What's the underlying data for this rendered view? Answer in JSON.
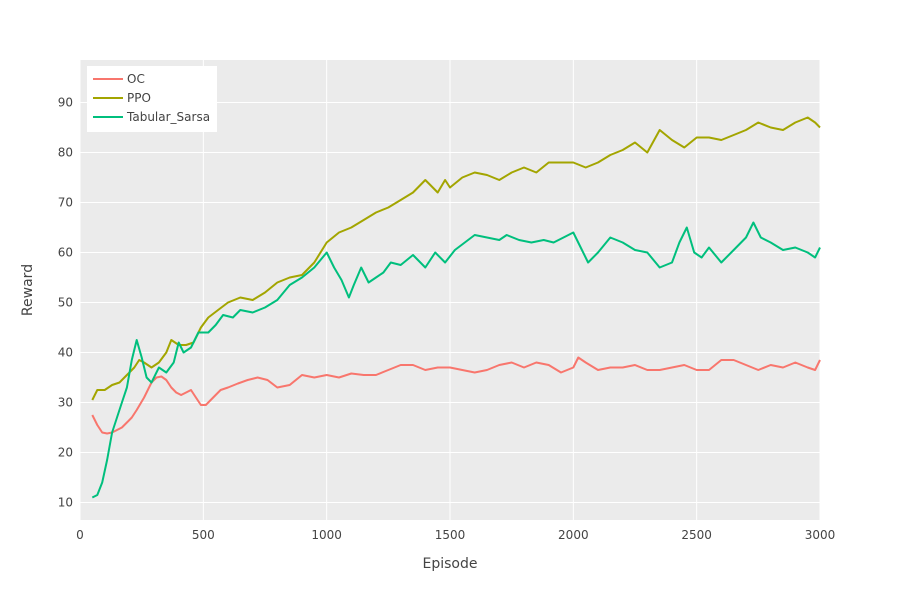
{
  "chart_data": {
    "type": "line",
    "title": "",
    "xlabel": "Episode",
    "ylabel": "Reward",
    "xlim": [
      0,
      3000
    ],
    "ylim": [
      6.5,
      98.5
    ],
    "xticks": [
      0,
      500,
      1000,
      1500,
      2000,
      2500,
      3000
    ],
    "yticks": [
      10,
      20,
      30,
      40,
      50,
      60,
      70,
      80,
      90
    ],
    "grid": true,
    "legend_position": "top-left",
    "colors": {
      "plot_background": "#ebebeb",
      "grid": "#ffffff"
    },
    "series": [
      {
        "name": "OC",
        "color": "#f8766d",
        "points": [
          [
            50,
            27.5
          ],
          [
            70,
            25.5
          ],
          [
            90,
            24
          ],
          [
            110,
            23.8
          ],
          [
            130,
            24
          ],
          [
            150,
            24.5
          ],
          [
            170,
            25
          ],
          [
            190,
            26
          ],
          [
            210,
            27
          ],
          [
            230,
            28.5
          ],
          [
            260,
            31
          ],
          [
            290,
            34
          ],
          [
            310,
            35
          ],
          [
            330,
            35.2
          ],
          [
            350,
            34.5
          ],
          [
            370,
            33
          ],
          [
            390,
            32
          ],
          [
            410,
            31.5
          ],
          [
            430,
            32
          ],
          [
            450,
            32.5
          ],
          [
            470,
            31
          ],
          [
            490,
            29.5
          ],
          [
            510,
            29.5
          ],
          [
            540,
            31
          ],
          [
            570,
            32.5
          ],
          [
            600,
            33
          ],
          [
            640,
            33.8
          ],
          [
            680,
            34.5
          ],
          [
            720,
            35
          ],
          [
            760,
            34.5
          ],
          [
            800,
            33
          ],
          [
            850,
            33.5
          ],
          [
            900,
            35.5
          ],
          [
            950,
            35
          ],
          [
            1000,
            35.5
          ],
          [
            1050,
            35
          ],
          [
            1100,
            35.8
          ],
          [
            1150,
            35.5
          ],
          [
            1200,
            35.5
          ],
          [
            1250,
            36.5
          ],
          [
            1300,
            37.5
          ],
          [
            1350,
            37.5
          ],
          [
            1400,
            36.5
          ],
          [
            1450,
            37
          ],
          [
            1500,
            37
          ],
          [
            1550,
            36.5
          ],
          [
            1600,
            36
          ],
          [
            1650,
            36.5
          ],
          [
            1700,
            37.5
          ],
          [
            1750,
            38
          ],
          [
            1800,
            37
          ],
          [
            1850,
            38
          ],
          [
            1900,
            37.5
          ],
          [
            1950,
            36
          ],
          [
            2000,
            37
          ],
          [
            2020,
            39
          ],
          [
            2050,
            38
          ],
          [
            2100,
            36.5
          ],
          [
            2150,
            37
          ],
          [
            2200,
            37
          ],
          [
            2250,
            37.5
          ],
          [
            2300,
            36.5
          ],
          [
            2350,
            36.5
          ],
          [
            2400,
            37
          ],
          [
            2450,
            37.5
          ],
          [
            2500,
            36.5
          ],
          [
            2550,
            36.5
          ],
          [
            2600,
            38.5
          ],
          [
            2650,
            38.5
          ],
          [
            2700,
            37.5
          ],
          [
            2750,
            36.5
          ],
          [
            2800,
            37.5
          ],
          [
            2850,
            37
          ],
          [
            2900,
            38
          ],
          [
            2950,
            37
          ],
          [
            2980,
            36.5
          ],
          [
            3000,
            38.5
          ]
        ]
      },
      {
        "name": "PPO",
        "color": "#a3a500",
        "points": [
          [
            50,
            30.5
          ],
          [
            70,
            32.5
          ],
          [
            100,
            32.5
          ],
          [
            130,
            33.5
          ],
          [
            160,
            34
          ],
          [
            190,
            35.5
          ],
          [
            220,
            37
          ],
          [
            240,
            38.5
          ],
          [
            260,
            38
          ],
          [
            290,
            37
          ],
          [
            320,
            38
          ],
          [
            350,
            40
          ],
          [
            370,
            42.5
          ],
          [
            400,
            41.5
          ],
          [
            430,
            41.5
          ],
          [
            460,
            42
          ],
          [
            490,
            45
          ],
          [
            520,
            47
          ],
          [
            560,
            48.5
          ],
          [
            600,
            50
          ],
          [
            650,
            51
          ],
          [
            700,
            50.5
          ],
          [
            750,
            52
          ],
          [
            800,
            54
          ],
          [
            850,
            55
          ],
          [
            900,
            55.5
          ],
          [
            950,
            58
          ],
          [
            1000,
            62
          ],
          [
            1050,
            64
          ],
          [
            1100,
            65
          ],
          [
            1150,
            66.5
          ],
          [
            1200,
            68
          ],
          [
            1250,
            69
          ],
          [
            1300,
            70.5
          ],
          [
            1350,
            72
          ],
          [
            1400,
            74.5
          ],
          [
            1420,
            73.5
          ],
          [
            1450,
            72
          ],
          [
            1480,
            74.5
          ],
          [
            1500,
            73
          ],
          [
            1550,
            75
          ],
          [
            1600,
            76
          ],
          [
            1650,
            75.5
          ],
          [
            1700,
            74.5
          ],
          [
            1750,
            76
          ],
          [
            1800,
            77
          ],
          [
            1850,
            76
          ],
          [
            1900,
            78
          ],
          [
            1950,
            78
          ],
          [
            2000,
            78
          ],
          [
            2050,
            77
          ],
          [
            2100,
            78
          ],
          [
            2150,
            79.5
          ],
          [
            2200,
            80.5
          ],
          [
            2250,
            82
          ],
          [
            2300,
            80
          ],
          [
            2350,
            84.5
          ],
          [
            2400,
            82.5
          ],
          [
            2450,
            81
          ],
          [
            2500,
            83
          ],
          [
            2550,
            83
          ],
          [
            2600,
            82.5
          ],
          [
            2650,
            83.5
          ],
          [
            2700,
            84.5
          ],
          [
            2750,
            86
          ],
          [
            2800,
            85
          ],
          [
            2850,
            84.5
          ],
          [
            2900,
            86
          ],
          [
            2950,
            87
          ],
          [
            2980,
            86
          ],
          [
            3000,
            85
          ]
        ]
      },
      {
        "name": "Tabular_Sarsa",
        "color": "#00bf7d",
        "points": [
          [
            50,
            11
          ],
          [
            70,
            11.5
          ],
          [
            90,
            14
          ],
          [
            110,
            18.5
          ],
          [
            130,
            24
          ],
          [
            150,
            27
          ],
          [
            170,
            30
          ],
          [
            190,
            33
          ],
          [
            210,
            38.5
          ],
          [
            230,
            42.5
          ],
          [
            250,
            39
          ],
          [
            270,
            35
          ],
          [
            290,
            34
          ],
          [
            320,
            37
          ],
          [
            350,
            36
          ],
          [
            380,
            38
          ],
          [
            400,
            42
          ],
          [
            420,
            40
          ],
          [
            450,
            41
          ],
          [
            480,
            44
          ],
          [
            520,
            44
          ],
          [
            550,
            45.5
          ],
          [
            580,
            47.5
          ],
          [
            620,
            47
          ],
          [
            650,
            48.5
          ],
          [
            700,
            48
          ],
          [
            750,
            49
          ],
          [
            800,
            50.5
          ],
          [
            850,
            53.5
          ],
          [
            900,
            55
          ],
          [
            950,
            57
          ],
          [
            1000,
            60
          ],
          [
            1030,
            57
          ],
          [
            1060,
            54.5
          ],
          [
            1090,
            51
          ],
          [
            1110,
            53.5
          ],
          [
            1140,
            57
          ],
          [
            1170,
            54
          ],
          [
            1200,
            55
          ],
          [
            1230,
            56
          ],
          [
            1260,
            58
          ],
          [
            1300,
            57.5
          ],
          [
            1350,
            59.5
          ],
          [
            1400,
            57
          ],
          [
            1440,
            60
          ],
          [
            1480,
            58
          ],
          [
            1520,
            60.5
          ],
          [
            1560,
            62
          ],
          [
            1600,
            63.5
          ],
          [
            1650,
            63
          ],
          [
            1700,
            62.5
          ],
          [
            1730,
            63.5
          ],
          [
            1780,
            62.5
          ],
          [
            1830,
            62
          ],
          [
            1880,
            62.5
          ],
          [
            1920,
            62
          ],
          [
            1960,
            63
          ],
          [
            2000,
            64
          ],
          [
            2030,
            61
          ],
          [
            2060,
            58
          ],
          [
            2100,
            60
          ],
          [
            2150,
            63
          ],
          [
            2200,
            62
          ],
          [
            2250,
            60.5
          ],
          [
            2300,
            60
          ],
          [
            2350,
            57
          ],
          [
            2400,
            58
          ],
          [
            2430,
            62
          ],
          [
            2460,
            65
          ],
          [
            2490,
            60
          ],
          [
            2520,
            59
          ],
          [
            2550,
            61
          ],
          [
            2600,
            58
          ],
          [
            2650,
            60.5
          ],
          [
            2700,
            63
          ],
          [
            2730,
            66
          ],
          [
            2760,
            63
          ],
          [
            2800,
            62
          ],
          [
            2850,
            60.5
          ],
          [
            2900,
            61
          ],
          [
            2950,
            60
          ],
          [
            2980,
            59
          ],
          [
            3000,
            61
          ]
        ]
      }
    ]
  }
}
